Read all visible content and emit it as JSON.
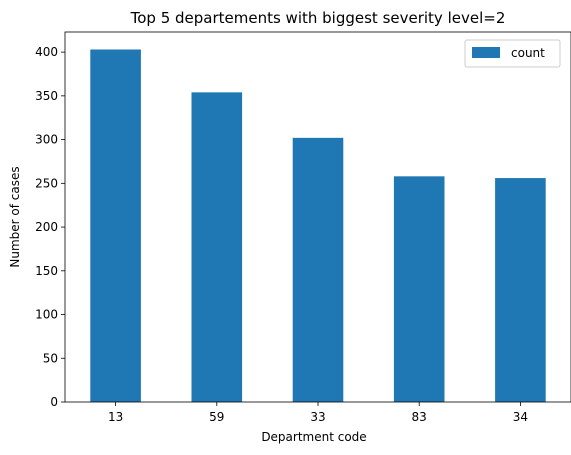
{
  "chart_data": {
    "type": "bar",
    "title": "Top 5 departements with biggest severity level=2",
    "xlabel": "Department code",
    "ylabel": "Number of cases",
    "categories": [
      "13",
      "59",
      "33",
      "83",
      "34"
    ],
    "series": [
      {
        "name": "count",
        "values": [
          403,
          354,
          302,
          258,
          256
        ],
        "color": "#1f77b4"
      }
    ],
    "ylim": [
      0,
      423
    ],
    "yticks": [
      0,
      50,
      100,
      150,
      200,
      250,
      300,
      350,
      400
    ],
    "legend": "top-right",
    "grid": false
  }
}
